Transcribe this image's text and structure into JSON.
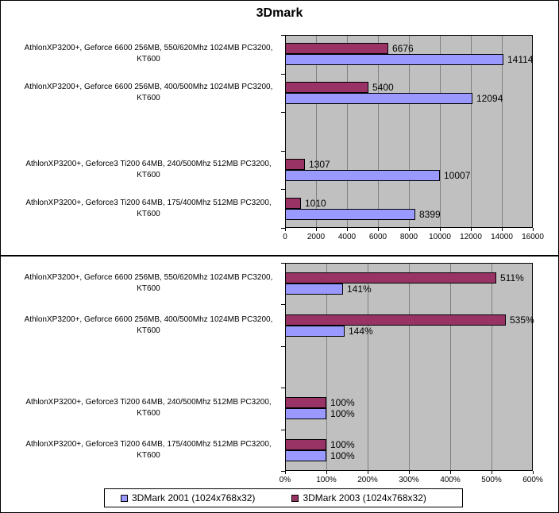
{
  "figure_title": "3Dmark",
  "colors": {
    "series_2001": "#9999FF",
    "series_2003": "#993366",
    "plot_background": "#C0C0C0",
    "gridline": "#808080",
    "axis": "#000000"
  },
  "legend": {
    "items": [
      {
        "label": "3DMark 2001 (1024x768x32)",
        "color": "#9999FF"
      },
      {
        "label": "3DMark 2003 (1024x768x32)",
        "color": "#993366"
      }
    ]
  },
  "chart_data": [
    {
      "type": "bar",
      "orientation": "horizontal",
      "title": "3Dmark",
      "categories": [
        "AthlonXP3200+, Geforce 6600 256MB, 550/620Mhz 1024MB PC3200,\nKT600",
        "AthlonXP3200+, Geforce 6600 256MB, 400/500Mhz 1024MB PC3200,\nKT600",
        "AthlonXP3200+, Geforce3 Ti200 64MB, 240/500Mhz 512MB PC3200,\nKT600",
        "AthlonXP3200+, Geforce3 Ti200 64MB, 175/400Mhz 512MB PC3200,\nKT600"
      ],
      "series": [
        {
          "name": "3DMark 2001 (1024x768x32)",
          "color": "#9999FF",
          "values": [
            14114,
            12094,
            10007,
            8399
          ],
          "data_labels": [
            "14114",
            "12094",
            "10007",
            "8399"
          ]
        },
        {
          "name": "3DMark 2003 (1024x768x32)",
          "color": "#993366",
          "values": [
            6676,
            5400,
            1307,
            1010
          ],
          "data_labels": [
            "6676",
            "5400",
            "1307",
            "1010"
          ]
        }
      ],
      "xlim": [
        0,
        16000
      ],
      "xticks": [
        "0",
        "2000",
        "4000",
        "6000",
        "8000",
        "10000",
        "12000",
        "14000",
        "16000"
      ],
      "grid": true,
      "plot_bg": "#C0C0C0",
      "gridline_color": "#808080",
      "slot_count": 5,
      "category_slots": [
        0,
        1,
        3,
        4
      ],
      "legend_position": "none"
    },
    {
      "type": "bar",
      "orientation": "horizontal",
      "title": "",
      "categories": [
        "AthlonXP3200+, Geforce 6600 256MB, 550/620Mhz 1024MB PC3200,\nKT600",
        "AthlonXP3200+, Geforce 6600 256MB, 400/500Mhz 1024MB PC3200,\nKT600",
        "AthlonXP3200+, Geforce3 Ti200 64MB, 240/500Mhz 512MB PC3200,\nKT600",
        "AthlonXP3200+, Geforce3 Ti200 64MB, 175/400Mhz 512MB PC3200,\nKT600"
      ],
      "series": [
        {
          "name": "3DMark 2001 (1024x768x32)",
          "color": "#9999FF",
          "values": [
            141,
            144,
            100,
            100
          ],
          "data_labels": [
            "141%",
            "144%",
            "100%",
            "100%"
          ]
        },
        {
          "name": "3DMark 2003 (1024x768x32)",
          "color": "#993366",
          "values": [
            511,
            535,
            100,
            100
          ],
          "data_labels": [
            "511%",
            "535%",
            "100%",
            "100%"
          ]
        }
      ],
      "xlim": [
        0,
        600
      ],
      "xticks": [
        "0%",
        "100%",
        "200%",
        "300%",
        "400%",
        "500%",
        "600%"
      ],
      "grid": true,
      "plot_bg": "#C0C0C0",
      "gridline_color": "#808080",
      "slot_count": 5,
      "category_slots": [
        0,
        1,
        3,
        4
      ],
      "legend_position": "bottom"
    }
  ]
}
